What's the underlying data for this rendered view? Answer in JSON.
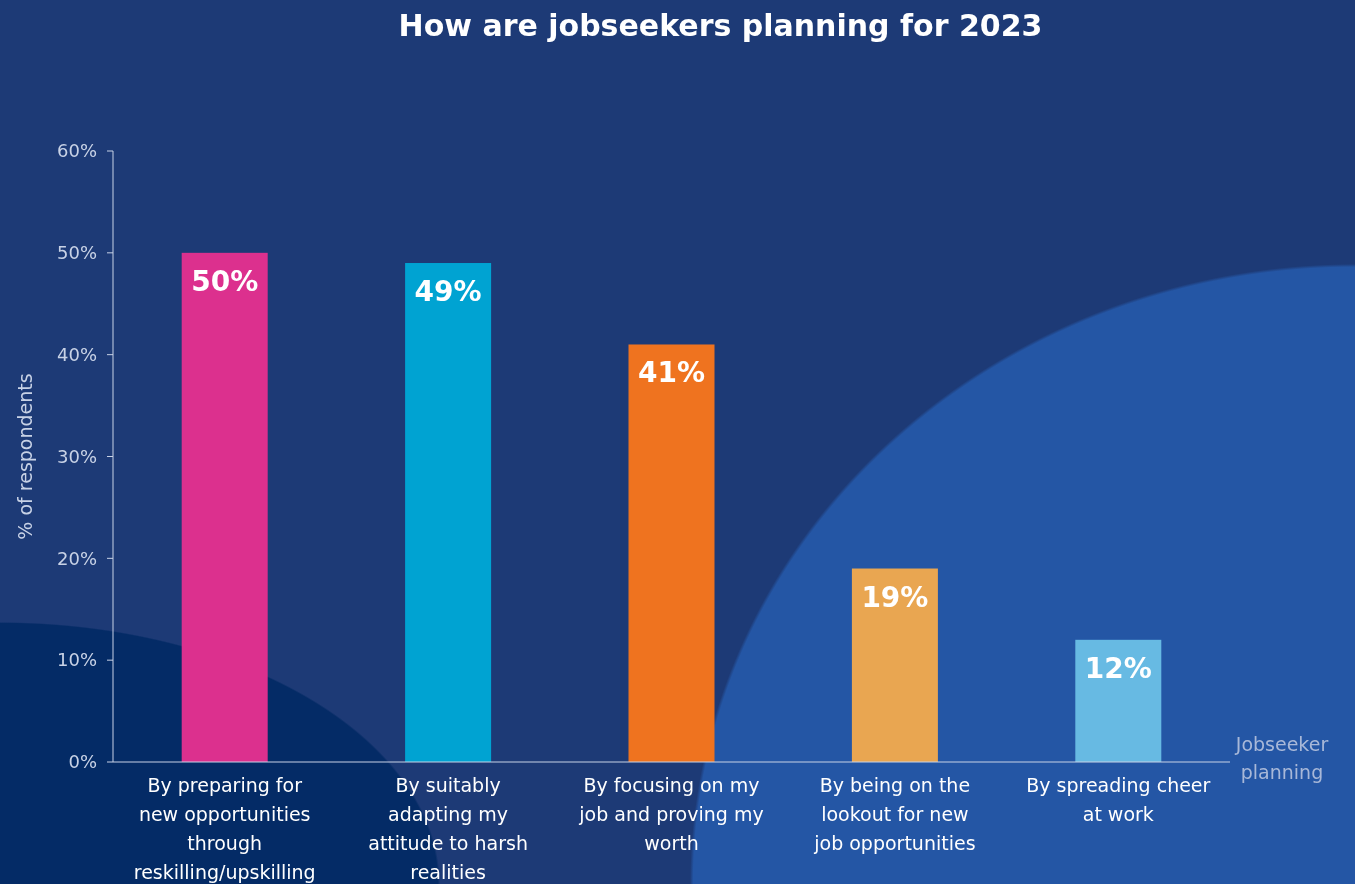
{
  "chart_data": {
    "type": "bar",
    "title": "How are jobseekers planning for 2023",
    "xlabel": "Jobseeker planning",
    "ylabel": "% of respondents",
    "categories": [
      "By preparing for new opportunities through reskilling/upskilling",
      "By suitably adapting my attitude to harsh realities",
      "By focusing on my job and proving my worth",
      "By being on the lookout for new job opportunities",
      "By spreading cheer at work"
    ],
    "values": [
      50,
      49,
      41,
      19,
      12
    ],
    "colors": [
      "#dc308e",
      "#00a3d2",
      "#ef731f",
      "#e9a651",
      "#67bae3"
    ],
    "data_labels": true,
    "value_labels": [
      "50%",
      "49%",
      "41%",
      "19%",
      "12%"
    ],
    "ylim": [
      0,
      60
    ],
    "yticks": [
      {
        "value": 0,
        "label": "0%"
      },
      {
        "value": 10,
        "label": "10%"
      },
      {
        "value": 20,
        "label": "20%"
      },
      {
        "value": 30,
        "label": "30%"
      },
      {
        "value": 40,
        "label": "40%"
      },
      {
        "value": 50,
        "label": "50%"
      },
      {
        "value": 60,
        "label": "60%"
      }
    ],
    "grid": false
  }
}
